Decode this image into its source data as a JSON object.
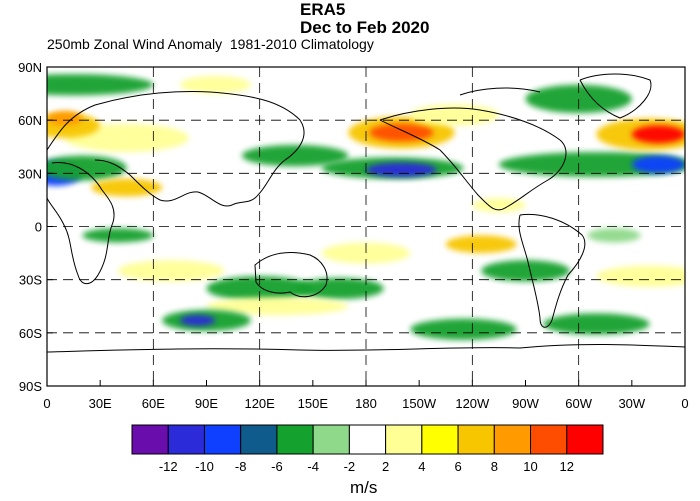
{
  "title_line1": "ERA5",
  "title_line2": "Dec to Feb 2020",
  "subtitle": "250mb Zonal Wind Anomaly  1981-2010 Climatology",
  "units_label": "m/s",
  "lat_labels": [
    "90N",
    "60N",
    "30N",
    "0",
    "30S",
    "60S",
    "90S"
  ],
  "lon_labels": [
    "0",
    "30E",
    "60E",
    "90E",
    "120E",
    "150E",
    "180",
    "150W",
    "120W",
    "90W",
    "60W",
    "30W",
    "0"
  ],
  "colorbar": {
    "labels": [
      "-12",
      "-10",
      "-8",
      "-6",
      "-4",
      "-2",
      "2",
      "4",
      "6",
      "8",
      "10",
      "12"
    ],
    "colors": [
      "#6a0dad",
      "#2b2bd9",
      "#1040ff",
      "#0f5b8c",
      "#14a12e",
      "#8fd98a",
      "#ffffff",
      "#ffff96",
      "#ffff00",
      "#f7c600",
      "#ff9a00",
      "#ff4d00",
      "#ff0000"
    ]
  },
  "anomaly_blobs": [
    {
      "lon": 45,
      "lat": 50,
      "rx": 35,
      "ry": 8,
      "level": "pos4",
      "fill": "#ffff96"
    },
    {
      "lon": 10,
      "lat": 57,
      "rx": 20,
      "ry": 7,
      "level": "pos8",
      "fill": "#f7c600"
    },
    {
      "lon": 10,
      "lat": 61,
      "rx": 10,
      "ry": 4,
      "level": "pos10",
      "fill": "#ff9a00"
    },
    {
      "lon": 15,
      "lat": 80,
      "rx": 45,
      "ry": 6,
      "level": "neg4",
      "fill": "#14a12e"
    },
    {
      "lon": 5,
      "lat": 30,
      "rx": 15,
      "ry": 7,
      "level": "neg8",
      "fill": "#1040ff"
    },
    {
      "lon": 20,
      "lat": 33,
      "rx": 25,
      "ry": 7,
      "level": "neg4",
      "fill": "#14a12e"
    },
    {
      "lon": 45,
      "lat": 22,
      "rx": 20,
      "ry": 5,
      "level": "pos6",
      "fill": "#f7c600"
    },
    {
      "lon": 140,
      "lat": 40,
      "rx": 30,
      "ry": 6,
      "level": "neg6",
      "fill": "#14a12e"
    },
    {
      "lon": 200,
      "lat": 53,
      "rx": 30,
      "ry": 9,
      "level": "pos6",
      "fill": "#f7c600"
    },
    {
      "lon": 200,
      "lat": 53,
      "rx": 18,
      "ry": 5,
      "level": "pos10",
      "fill": "#ff4d00"
    },
    {
      "lon": 195,
      "lat": 33,
      "rx": 40,
      "ry": 6,
      "level": "neg6",
      "fill": "#14a12e"
    },
    {
      "lon": 200,
      "lat": 32,
      "rx": 20,
      "ry": 4,
      "level": "neg10",
      "fill": "#2b2bd9"
    },
    {
      "lon": 310,
      "lat": 35,
      "rx": 55,
      "ry": 7,
      "level": "neg6",
      "fill": "#14a12e"
    },
    {
      "lon": 345,
      "lat": 35,
      "rx": 15,
      "ry": 5,
      "level": "neg8",
      "fill": "#1040ff"
    },
    {
      "lon": 340,
      "lat": 52,
      "rx": 30,
      "ry": 9,
      "level": "pos8",
      "fill": "#f7c600"
    },
    {
      "lon": 345,
      "lat": 52,
      "rx": 15,
      "ry": 5,
      "level": "pos12",
      "fill": "#ff0000"
    },
    {
      "lon": 300,
      "lat": 72,
      "rx": 30,
      "ry": 8,
      "level": "neg4",
      "fill": "#14a12e"
    },
    {
      "lon": 120,
      "lat": -35,
      "rx": 30,
      "ry": 7,
      "level": "neg6",
      "fill": "#14a12e"
    },
    {
      "lon": 165,
      "lat": -35,
      "rx": 25,
      "ry": 6,
      "level": "neg6",
      "fill": "#14a12e"
    },
    {
      "lon": 130,
      "lat": -45,
      "rx": 40,
      "ry": 5,
      "level": "pos4",
      "fill": "#ffff96"
    },
    {
      "lon": 90,
      "lat": -53,
      "rx": 25,
      "ry": 6,
      "level": "neg6",
      "fill": "#14a12e"
    },
    {
      "lon": 85,
      "lat": -53,
      "rx": 10,
      "ry": 3,
      "level": "neg10",
      "fill": "#2b2bd9"
    },
    {
      "lon": 235,
      "lat": -58,
      "rx": 30,
      "ry": 6,
      "level": "neg6",
      "fill": "#14a12e"
    },
    {
      "lon": 310,
      "lat": -55,
      "rx": 30,
      "ry": 6,
      "level": "neg4",
      "fill": "#14a12e"
    },
    {
      "lon": 245,
      "lat": -10,
      "rx": 20,
      "ry": 5,
      "level": "pos6",
      "fill": "#f7c600"
    },
    {
      "lon": 180,
      "lat": -15,
      "rx": 25,
      "ry": 6,
      "level": "pos4",
      "fill": "#ffff96"
    },
    {
      "lon": 270,
      "lat": -25,
      "rx": 25,
      "ry": 6,
      "level": "neg4",
      "fill": "#14a12e"
    },
    {
      "lon": 340,
      "lat": -28,
      "rx": 30,
      "ry": 6,
      "level": "pos4",
      "fill": "#ffff96"
    },
    {
      "lon": 320,
      "lat": -5,
      "rx": 15,
      "ry": 4,
      "level": "neg4",
      "fill": "#8fd98a"
    },
    {
      "lon": 40,
      "lat": -5,
      "rx": 20,
      "ry": 4,
      "level": "neg4",
      "fill": "#14a12e"
    },
    {
      "lon": 70,
      "lat": -25,
      "rx": 30,
      "ry": 6,
      "level": "pos4",
      "fill": "#ffff96"
    },
    {
      "lon": 255,
      "lat": 12,
      "rx": 15,
      "ry": 4,
      "level": "pos4",
      "fill": "#ffff96"
    },
    {
      "lon": 95,
      "lat": 80,
      "rx": 20,
      "ry": 5,
      "level": "pos4",
      "fill": "#ffff96"
    },
    {
      "lon": 230,
      "lat": 63,
      "rx": 25,
      "ry": 6,
      "level": "pos4",
      "fill": "#ffff96"
    }
  ]
}
